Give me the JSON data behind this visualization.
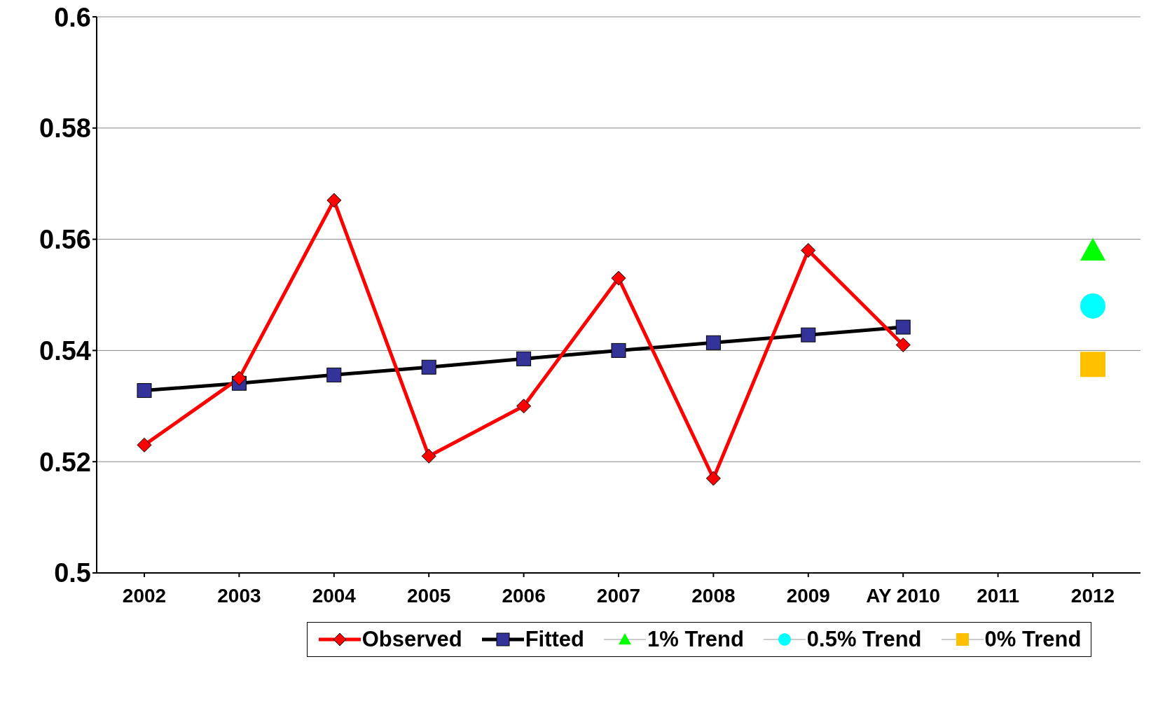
{
  "chart_data": {
    "type": "line",
    "categories": [
      "2002",
      "2003",
      "2004",
      "2005",
      "2006",
      "2007",
      "2008",
      "2009",
      "AY 2010",
      "2011",
      "2012"
    ],
    "series": [
      {
        "name": "Observed",
        "color": "#ff0000",
        "marker": "diamond",
        "values": [
          0.523,
          0.535,
          0.567,
          0.521,
          0.53,
          0.553,
          0.517,
          0.558,
          0.541,
          null,
          null
        ]
      },
      {
        "name": "Fitted",
        "color": "#000000",
        "marker": "square",
        "values": [
          0.5328,
          0.5341,
          0.5356,
          0.537,
          0.5385,
          0.54,
          0.5414,
          0.5428,
          0.5442,
          null,
          null
        ]
      },
      {
        "name": "1% Trend",
        "color": "#00ff00",
        "marker": "triangle",
        "values": [
          null,
          null,
          null,
          null,
          null,
          null,
          null,
          null,
          null,
          null,
          0.558
        ]
      },
      {
        "name": "0.5% Trend",
        "color": "#00ffff",
        "marker": "circle",
        "values": [
          null,
          null,
          null,
          null,
          null,
          null,
          null,
          null,
          null,
          null,
          0.548
        ]
      },
      {
        "name": "0% Trend",
        "color": "#ffc000",
        "marker": "square",
        "values": [
          null,
          null,
          null,
          null,
          null,
          null,
          null,
          null,
          null,
          null,
          0.5375
        ]
      }
    ],
    "ylim": [
      0.5,
      0.6
    ],
    "yticks": [
      0.5,
      0.52,
      0.54,
      0.56,
      0.58,
      0.6
    ],
    "grid": "y",
    "legend": "bottom",
    "line_style": "solid"
  }
}
